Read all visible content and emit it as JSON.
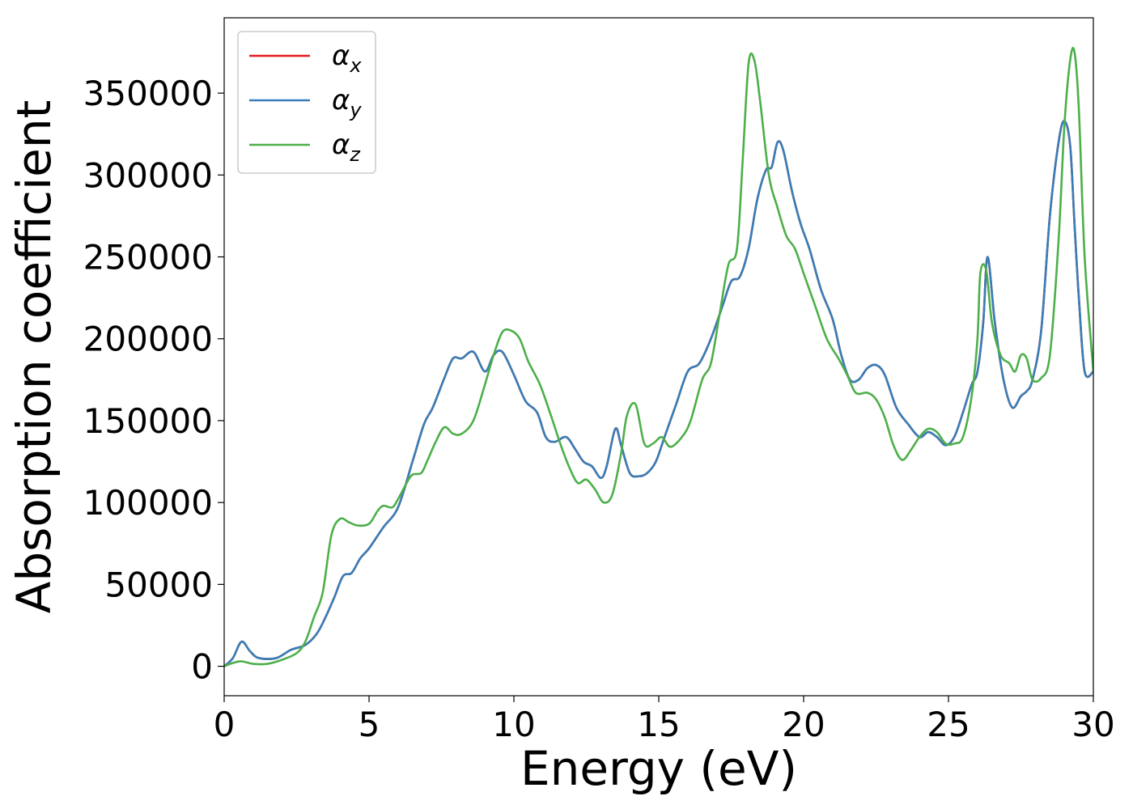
{
  "chart_data": {
    "type": "line",
    "title": "",
    "xlabel": "Energy (eV)",
    "ylabel": "Absorption coefficient",
    "xlim": [
      0,
      30
    ],
    "ylim": [
      -18000,
      396000
    ],
    "xticks": [
      0,
      5,
      10,
      15,
      20,
      25,
      30
    ],
    "xtick_labels": [
      "0",
      "5",
      "10",
      "15",
      "20",
      "25",
      "30"
    ],
    "yticks": [
      0,
      50000,
      100000,
      150000,
      200000,
      250000,
      300000,
      350000
    ],
    "ytick_labels": [
      "0",
      "50000",
      "100000",
      "150000",
      "200000",
      "250000",
      "300000",
      "350000"
    ],
    "grid": false,
    "legend_position": "top-left",
    "series": [
      {
        "name": "α_x",
        "legend_symbol": "α",
        "legend_subscript": "x",
        "color": "#e41a1c",
        "x": [
          0,
          0.3,
          0.6,
          0.9,
          1.2,
          1.8,
          2.3,
          2.8,
          3.2,
          3.5,
          3.8,
          4.1,
          4.4,
          4.7,
          5.0,
          5.5,
          6.0,
          6.5,
          6.9,
          7.2,
          7.6,
          7.9,
          8.2,
          8.6,
          9.0,
          9.3,
          9.6,
          10.0,
          10.4,
          10.8,
          11.1,
          11.4,
          11.8,
          12.1,
          12.4,
          12.7,
          13.0,
          13.2,
          13.5,
          13.7,
          14.0,
          14.3,
          14.6,
          14.9,
          15.2,
          15.6,
          16.0,
          16.4,
          16.8,
          17.2,
          17.5,
          17.8,
          18.1,
          18.4,
          18.7,
          18.9,
          19.1,
          19.3,
          19.6,
          19.9,
          20.2,
          20.6,
          21.0,
          21.3,
          21.6,
          21.9,
          22.2,
          22.5,
          22.8,
          23.2,
          23.6,
          24.0,
          24.3,
          24.6,
          24.9,
          25.2,
          25.5,
          25.8,
          26.0,
          26.2,
          26.35,
          26.6,
          26.9,
          27.2,
          27.5,
          27.7,
          27.9,
          28.2,
          28.5,
          28.8,
          29.0,
          29.2,
          29.35,
          29.5,
          29.7,
          30.0
        ],
        "y": [
          0,
          5000,
          15000,
          9000,
          5000,
          5000,
          10000,
          13000,
          20000,
          30000,
          42000,
          55000,
          57000,
          66000,
          72000,
          85000,
          97000,
          125000,
          148000,
          158000,
          176000,
          188000,
          188000,
          192000,
          180000,
          190000,
          192000,
          178000,
          162000,
          155000,
          140000,
          137000,
          140000,
          133000,
          125000,
          122000,
          115000,
          122000,
          145000,
          135000,
          118000,
          116000,
          118000,
          125000,
          140000,
          160000,
          180000,
          185000,
          200000,
          220000,
          235000,
          238000,
          255000,
          285000,
          303000,
          305000,
          320000,
          315000,
          290000,
          270000,
          255000,
          230000,
          212000,
          190000,
          175000,
          175000,
          182000,
          184000,
          178000,
          158000,
          148000,
          140000,
          143000,
          140000,
          135000,
          140000,
          155000,
          172000,
          180000,
          210000,
          250000,
          210000,
          175000,
          158000,
          165000,
          168000,
          175000,
          205000,
          275000,
          320000,
          333000,
          318000,
          270000,
          225000,
          180000,
          180000
        ]
      },
      {
        "name": "α_y",
        "legend_symbol": "α",
        "legend_subscript": "y",
        "color": "#377eb8",
        "x": [
          0,
          0.3,
          0.6,
          0.9,
          1.2,
          1.8,
          2.3,
          2.8,
          3.2,
          3.5,
          3.8,
          4.1,
          4.4,
          4.7,
          5.0,
          5.5,
          6.0,
          6.5,
          6.9,
          7.2,
          7.6,
          7.9,
          8.2,
          8.6,
          9.0,
          9.3,
          9.6,
          10.0,
          10.4,
          10.8,
          11.1,
          11.4,
          11.8,
          12.1,
          12.4,
          12.7,
          13.0,
          13.2,
          13.5,
          13.7,
          14.0,
          14.3,
          14.6,
          14.9,
          15.2,
          15.6,
          16.0,
          16.4,
          16.8,
          17.2,
          17.5,
          17.8,
          18.1,
          18.4,
          18.7,
          18.9,
          19.1,
          19.3,
          19.6,
          19.9,
          20.2,
          20.6,
          21.0,
          21.3,
          21.6,
          21.9,
          22.2,
          22.5,
          22.8,
          23.2,
          23.6,
          24.0,
          24.3,
          24.6,
          24.9,
          25.2,
          25.5,
          25.8,
          26.0,
          26.2,
          26.35,
          26.6,
          26.9,
          27.2,
          27.5,
          27.7,
          27.9,
          28.2,
          28.5,
          28.8,
          29.0,
          29.2,
          29.35,
          29.5,
          29.7,
          30.0
        ],
        "y": [
          0,
          5000,
          15000,
          9000,
          5000,
          5000,
          10000,
          13000,
          20000,
          30000,
          42000,
          55000,
          57000,
          66000,
          72000,
          85000,
          97000,
          125000,
          148000,
          158000,
          176000,
          188000,
          188000,
          192000,
          180000,
          190000,
          192000,
          178000,
          162000,
          155000,
          140000,
          137000,
          140000,
          133000,
          125000,
          122000,
          115000,
          122000,
          145000,
          135000,
          118000,
          116000,
          118000,
          125000,
          140000,
          160000,
          180000,
          185000,
          200000,
          220000,
          235000,
          238000,
          255000,
          285000,
          303000,
          305000,
          320000,
          315000,
          290000,
          270000,
          255000,
          230000,
          212000,
          190000,
          175000,
          175000,
          182000,
          184000,
          178000,
          158000,
          148000,
          140000,
          143000,
          140000,
          135000,
          140000,
          155000,
          172000,
          180000,
          210000,
          250000,
          210000,
          175000,
          158000,
          165000,
          168000,
          175000,
          205000,
          275000,
          320000,
          333000,
          318000,
          270000,
          225000,
          180000,
          180000
        ]
      },
      {
        "name": "α_z",
        "legend_symbol": "α",
        "legend_subscript": "z",
        "color": "#4daf4a",
        "x": [
          0,
          0.3,
          0.6,
          1.0,
          1.5,
          2.0,
          2.5,
          2.8,
          3.1,
          3.4,
          3.7,
          4.0,
          4.3,
          4.6,
          5.0,
          5.3,
          5.5,
          5.8,
          6.0,
          6.3,
          6.5,
          6.8,
          7.0,
          7.3,
          7.6,
          7.9,
          8.2,
          8.6,
          9.0,
          9.3,
          9.6,
          9.9,
          10.2,
          10.5,
          10.9,
          11.3,
          11.6,
          11.9,
          12.2,
          12.5,
          12.8,
          13.1,
          13.4,
          13.7,
          13.9,
          14.2,
          14.5,
          14.8,
          15.1,
          15.4,
          15.8,
          16.1,
          16.5,
          16.8,
          17.1,
          17.4,
          17.7,
          17.9,
          18.1,
          18.3,
          18.5,
          18.8,
          19.1,
          19.4,
          19.7,
          20.0,
          20.4,
          20.8,
          21.2,
          21.5,
          21.8,
          22.2,
          22.5,
          22.8,
          23.1,
          23.4,
          23.7,
          24.0,
          24.3,
          24.6,
          24.9,
          25.2,
          25.5,
          25.8,
          26.0,
          26.1,
          26.3,
          26.5,
          26.8,
          27.1,
          27.3,
          27.5,
          27.7,
          27.9,
          28.2,
          28.5,
          28.8,
          29.0,
          29.2,
          29.35,
          29.5,
          29.7,
          30.0
        ],
        "y": [
          0,
          2000,
          3000,
          1500,
          1500,
          4000,
          8000,
          15000,
          30000,
          45000,
          80000,
          90000,
          88000,
          86000,
          87000,
          95000,
          98000,
          97000,
          102000,
          112000,
          117000,
          118000,
          125000,
          137000,
          146000,
          142000,
          142000,
          150000,
          172000,
          190000,
          204000,
          205000,
          200000,
          186000,
          172000,
          152000,
          136000,
          122000,
          112000,
          114000,
          108000,
          100000,
          105000,
          130000,
          153000,
          160000,
          136000,
          136000,
          140000,
          134000,
          140000,
          150000,
          175000,
          185000,
          215000,
          245000,
          255000,
          310000,
          368000,
          370000,
          345000,
          300000,
          280000,
          263000,
          255000,
          240000,
          220000,
          200000,
          188000,
          178000,
          167000,
          167000,
          163000,
          152000,
          135000,
          126000,
          132000,
          140000,
          145000,
          143000,
          136000,
          136000,
          140000,
          165000,
          200000,
          240000,
          242000,
          210000,
          190000,
          185000,
          180000,
          190000,
          188000,
          175000,
          176000,
          190000,
          260000,
          330000,
          370000,
          375000,
          340000,
          250000,
          180000
        ]
      }
    ]
  }
}
